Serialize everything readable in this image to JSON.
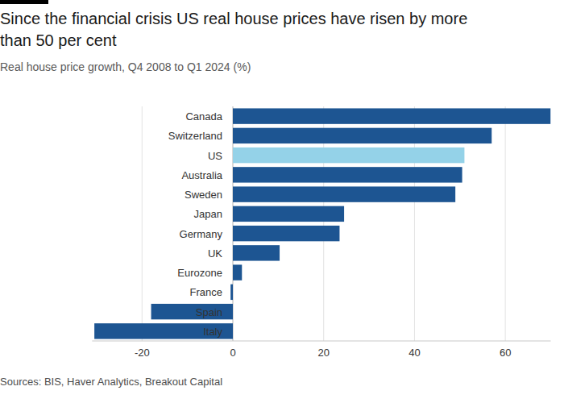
{
  "chart_data": {
    "type": "bar",
    "title": "Since the financial crisis US real house prices have risen by more than 50 per cent",
    "subtitle": "Real house price growth, Q4 2008 to Q1 2024 (%)",
    "source": "Sources: BIS, Haver Analytics, Breakout Capital",
    "orientation": "horizontal",
    "categories": [
      "Canada",
      "Switzerland",
      "US",
      "Australia",
      "Sweden",
      "Japan",
      "Germany",
      "UK",
      "Eurozone",
      "France",
      "Spain",
      "Italy"
    ],
    "values": [
      70,
      57,
      51,
      50.5,
      49,
      24.5,
      23.5,
      10.3,
      2,
      -0.5,
      -18,
      -30.5
    ],
    "colors": [
      "#1d5592",
      "#1d5592",
      "#94d2e8",
      "#1d5592",
      "#1d5592",
      "#1d5592",
      "#1d5592",
      "#1d5592",
      "#1d5592",
      "#1d5592",
      "#1d5592",
      "#1d5592"
    ],
    "xlim": [
      -31,
      70
    ],
    "xticks": [
      -20,
      0,
      20,
      40,
      60
    ],
    "grid": true
  }
}
